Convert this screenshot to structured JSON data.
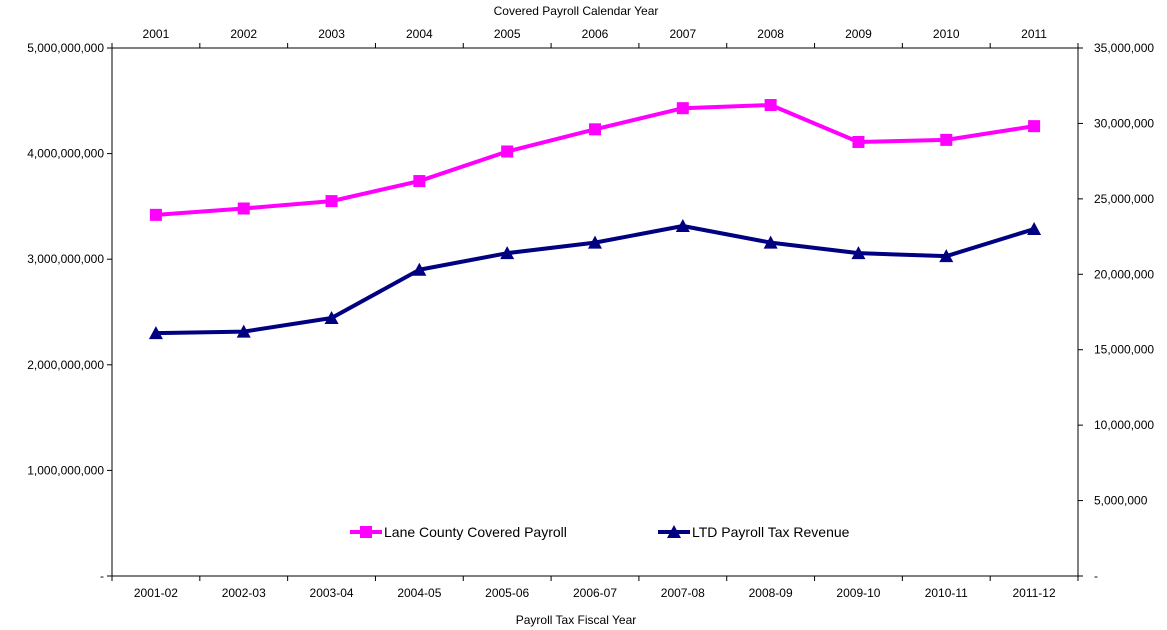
{
  "chart_data": {
    "type": "line",
    "top_axis": {
      "title": "Covered Payroll Calendar Year",
      "categories": [
        "2001",
        "2002",
        "2003",
        "2004",
        "2005",
        "2006",
        "2007",
        "2008",
        "2009",
        "2010",
        "2011"
      ]
    },
    "bottom_axis": {
      "title": "Payroll Tax Fiscal Year",
      "categories": [
        "2001-02",
        "2002-03",
        "2003-04",
        "2004-05",
        "2005-06",
        "2006-07",
        "2007-08",
        "2008-09",
        "2009-10",
        "2010-11",
        "2011-12"
      ]
    },
    "left_axis": {
      "range": [
        0,
        5000000000
      ],
      "tick_values": [
        0,
        1000000000,
        2000000000,
        3000000000,
        4000000000,
        5000000000
      ],
      "tick_labels": [
        "-",
        "1,000,000,000",
        "2,000,000,000",
        "3,000,000,000",
        "4,000,000,000",
        "5,000,000,000"
      ]
    },
    "right_axis": {
      "range": [
        0,
        35000000
      ],
      "tick_values": [
        0,
        5000000,
        10000000,
        15000000,
        20000000,
        25000000,
        30000000,
        35000000
      ],
      "tick_labels": [
        "-",
        "5,000,000",
        "10,000,000",
        "15,000,000",
        "20,000,000",
        "25,000,000",
        "30,000,000",
        "35,000,000"
      ]
    },
    "series": [
      {
        "name": "Lane County Covered Payroll",
        "axis": "left",
        "color": "#FF00FF",
        "marker": "square",
        "values": [
          3420000000,
          3480000000,
          3550000000,
          3740000000,
          4020000000,
          4230000000,
          4430000000,
          4460000000,
          4110000000,
          4130000000,
          4260000000
        ]
      },
      {
        "name": "LTD Payroll Tax Revenue",
        "axis": "right",
        "color": "#000080",
        "marker": "triangle",
        "values": [
          16100000,
          16200000,
          17100000,
          20300000,
          21400000,
          22100000,
          23200000,
          22100000,
          21400000,
          21200000,
          23000000
        ]
      }
    ],
    "legend_position": "bottom-center (inside plot)",
    "grid": false
  }
}
